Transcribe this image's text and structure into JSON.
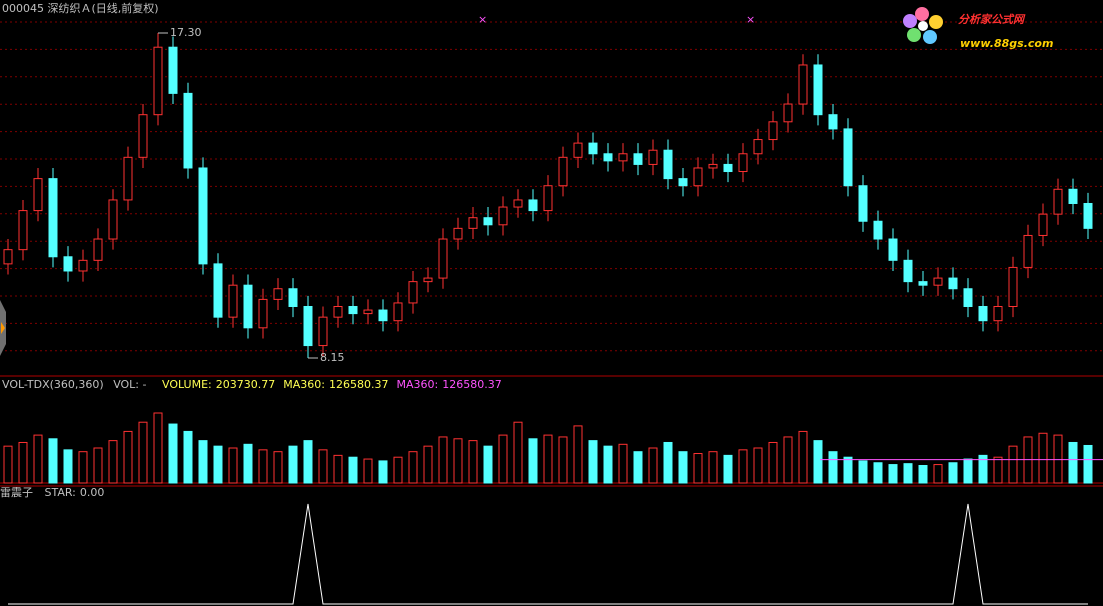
{
  "header": {
    "title": "000045 深纺织Ａ(日线,前复权)"
  },
  "watermark": {
    "name": "分析家公式网",
    "url": "www.88gs.com"
  },
  "chart_data": [
    {
      "type": "candlestick",
      "open": [
        10.8,
        11.2,
        12.3,
        13.2,
        11.0,
        10.6,
        10.9,
        11.5,
        12.6,
        13.8,
        15.0,
        16.9,
        15.6,
        13.5,
        10.8,
        9.3,
        10.2,
        9.0,
        9.8,
        10.1,
        9.6,
        8.5,
        9.3,
        9.6,
        9.4,
        9.5,
        9.2,
        9.7,
        10.3,
        10.4,
        11.5,
        11.8,
        12.1,
        11.9,
        12.4,
        12.6,
        12.3,
        13.0,
        13.8,
        14.2,
        13.9,
        13.7,
        13.9,
        13.6,
        14.0,
        13.2,
        13.0,
        13.5,
        13.6,
        13.4,
        13.9,
        14.3,
        14.8,
        15.3,
        16.4,
        15.0,
        14.6,
        13.0,
        12.0,
        11.5,
        10.9,
        10.3,
        10.2,
        10.4,
        10.1,
        9.6,
        9.2,
        9.6,
        10.7,
        11.6,
        12.2,
        12.9,
        12.5
      ],
      "high": [
        11.5,
        12.6,
        13.5,
        13.5,
        11.3,
        11.2,
        11.8,
        12.9,
        14.1,
        15.3,
        17.3,
        17.2,
        15.9,
        13.8,
        11.1,
        10.5,
        10.5,
        10.1,
        10.4,
        10.4,
        9.9,
        9.6,
        9.9,
        9.9,
        9.8,
        9.8,
        10.0,
        10.6,
        10.7,
        11.8,
        12.1,
        12.4,
        12.4,
        12.7,
        12.9,
        12.9,
        13.3,
        14.1,
        14.5,
        14.5,
        14.2,
        14.2,
        14.2,
        14.3,
        14.3,
        13.5,
        13.8,
        13.9,
        13.9,
        14.2,
        14.6,
        15.1,
        15.6,
        16.7,
        16.7,
        15.3,
        14.9,
        13.3,
        12.3,
        11.8,
        11.2,
        10.6,
        10.7,
        10.7,
        10.4,
        9.9,
        9.9,
        11.0,
        11.9,
        12.5,
        13.2,
        13.2,
        12.8
      ],
      "low": [
        10.5,
        10.9,
        12.0,
        10.7,
        10.3,
        10.3,
        10.6,
        11.2,
        12.3,
        13.5,
        14.7,
        15.3,
        13.2,
        10.5,
        9.0,
        9.0,
        8.7,
        8.7,
        9.5,
        9.3,
        8.15,
        8.2,
        9.0,
        9.1,
        9.1,
        8.9,
        8.9,
        9.4,
        10.0,
        10.1,
        11.2,
        11.5,
        11.6,
        11.6,
        12.1,
        12.0,
        12.0,
        12.7,
        13.5,
        13.6,
        13.4,
        13.4,
        13.3,
        13.3,
        12.9,
        12.7,
        12.7,
        13.2,
        13.1,
        13.1,
        13.6,
        14.0,
        14.5,
        15.0,
        14.7,
        14.3,
        12.7,
        11.7,
        11.2,
        10.6,
        10.0,
        9.9,
        9.9,
        9.8,
        9.3,
        8.9,
        8.9,
        9.3,
        10.4,
        11.3,
        11.9,
        12.2,
        11.5
      ],
      "close": [
        11.2,
        12.3,
        13.2,
        11.0,
        10.6,
        10.9,
        11.5,
        12.6,
        13.8,
        15.0,
        16.9,
        15.6,
        13.5,
        10.8,
        9.3,
        10.2,
        9.0,
        9.8,
        10.1,
        9.6,
        8.5,
        9.3,
        9.6,
        9.4,
        9.5,
        9.2,
        9.7,
        10.3,
        10.4,
        11.5,
        11.8,
        12.1,
        11.9,
        12.4,
        12.6,
        12.3,
        13.0,
        13.8,
        14.2,
        13.9,
        13.7,
        13.9,
        13.6,
        14.0,
        13.2,
        13.0,
        13.5,
        13.6,
        13.4,
        13.9,
        14.3,
        14.8,
        15.3,
        16.4,
        15.0,
        14.6,
        13.0,
        12.0,
        11.5,
        10.9,
        10.3,
        10.2,
        10.4,
        10.1,
        9.6,
        9.2,
        9.6,
        10.7,
        11.6,
        12.2,
        12.9,
        12.5,
        11.8
      ],
      "annotations": [
        {
          "value": 17.3,
          "label": "17.30"
        },
        {
          "value": 8.15,
          "label": "8.15"
        }
      ],
      "up_color": "#ff3232",
      "down_color": "#54ffff"
    },
    {
      "type": "bar",
      "title": "VOL-TDX(360,360)",
      "subtitle": "VOL: -",
      "values": [
        200000,
        220000,
        260000,
        240000,
        180000,
        170000,
        190000,
        230000,
        280000,
        330000,
        380000,
        320000,
        280000,
        230000,
        200000,
        190000,
        210000,
        180000,
        170000,
        200000,
        230000,
        180000,
        150000,
        140000,
        130000,
        120000,
        140000,
        170000,
        200000,
        250000,
        240000,
        230000,
        200000,
        260000,
        330000,
        240000,
        260000,
        250000,
        310000,
        230000,
        200000,
        210000,
        170000,
        190000,
        220000,
        170000,
        160000,
        170000,
        150000,
        180000,
        190000,
        220000,
        250000,
        280000,
        230000,
        170000,
        140000,
        120000,
        110000,
        100000,
        105000,
        95000,
        100000,
        110000,
        130000,
        150000,
        140000,
        200000,
        250000,
        270000,
        260000,
        220000,
        203730.77
      ],
      "fields": [
        {
          "name": "VOLUME:",
          "value": 203730.77,
          "color": "#ffff54"
        },
        {
          "name": "MA360:",
          "value": 126580.37,
          "color": "#ffff54"
        },
        {
          "name": "MA360:",
          "value": 126580.37,
          "color": "#ff54ff"
        }
      ]
    },
    {
      "type": "line",
      "title": "雷震子",
      "values": [
        0,
        0,
        0,
        0,
        0,
        0,
        0,
        0,
        0,
        0,
        0,
        0,
        0,
        0,
        0,
        0,
        0,
        0,
        0,
        0,
        1,
        0,
        0,
        0,
        0,
        0,
        0,
        0,
        0,
        0,
        0,
        0,
        0,
        0,
        0,
        0,
        0,
        0,
        0,
        0,
        0,
        0,
        0,
        0,
        0,
        0,
        0,
        0,
        0,
        0,
        0,
        0,
        0,
        0,
        0,
        0,
        0,
        0,
        0,
        0,
        0,
        0,
        0,
        0,
        1,
        0,
        0,
        0,
        0,
        0,
        0,
        0,
        0
      ],
      "fields": [
        {
          "name": "STAR:",
          "value": 0,
          "label": "0.00",
          "color": "#c0c0c0"
        }
      ],
      "color": "#ffffff"
    }
  ]
}
